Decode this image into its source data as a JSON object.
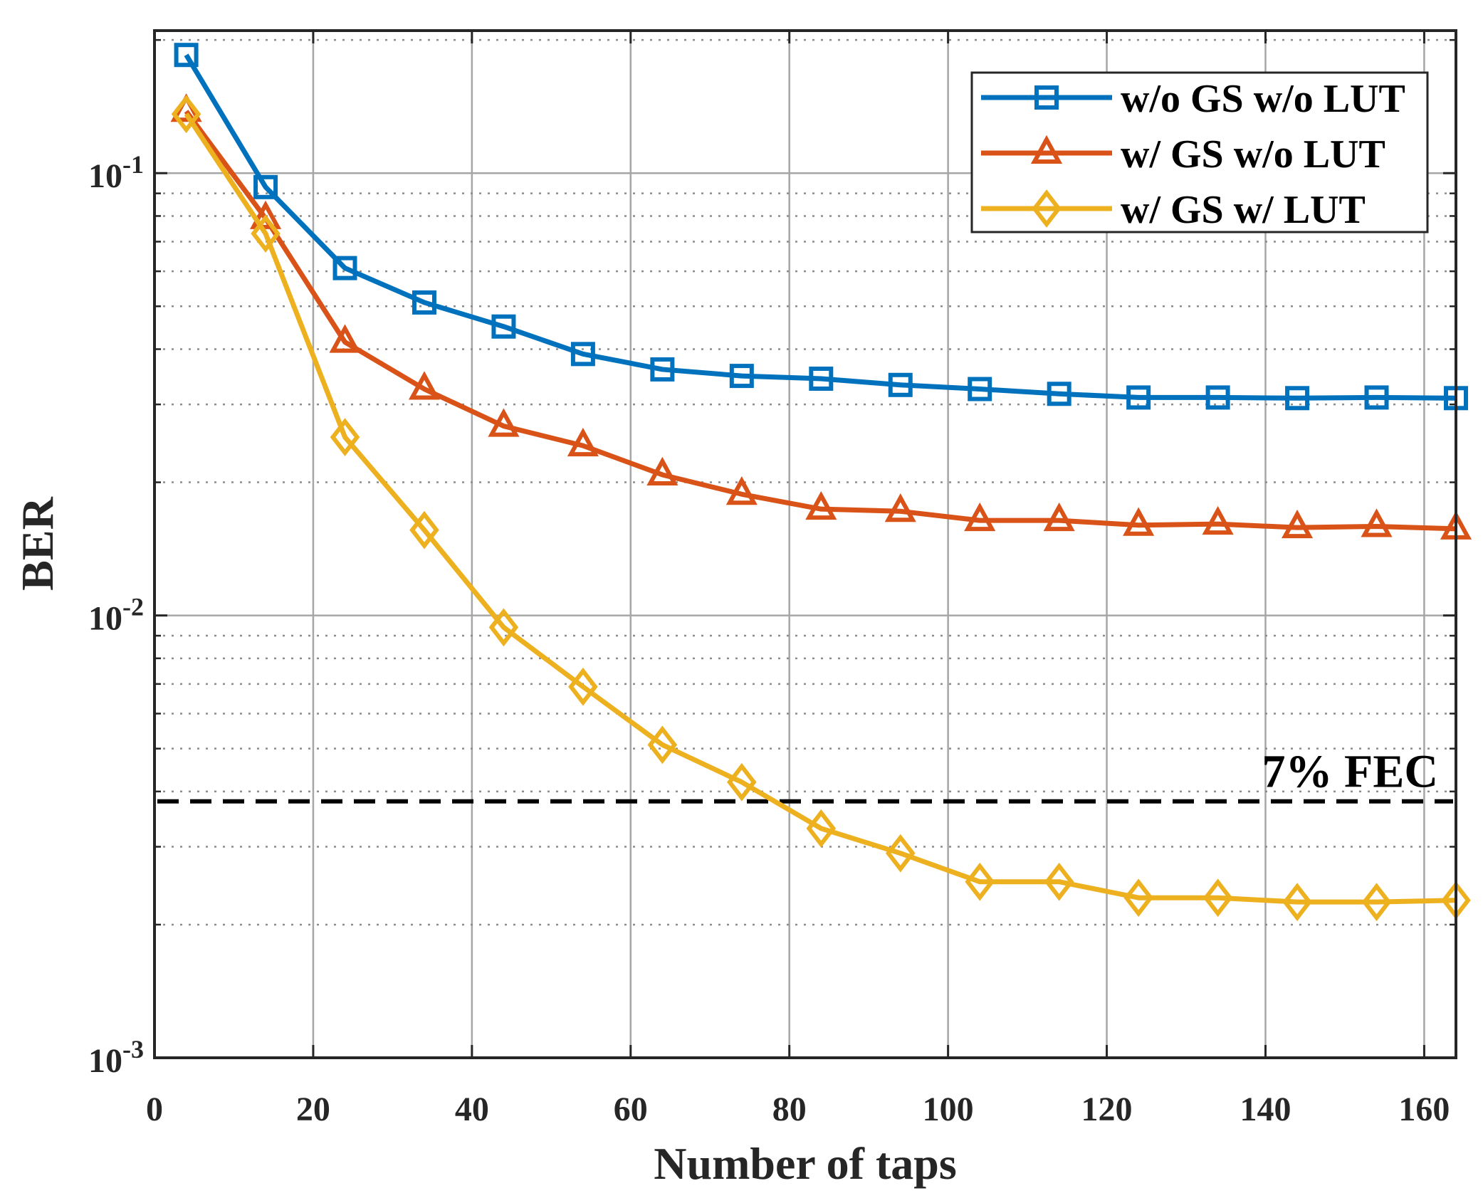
{
  "chart_data": {
    "type": "line",
    "title": "",
    "xlabel": "Number of taps",
    "ylabel": "BER",
    "xscale": "linear",
    "yscale": "log",
    "xlim": [
      0,
      164
    ],
    "ylim": [
      0.001,
      0.21
    ],
    "grid": true,
    "minor_grid": "y",
    "legend_position": "top-right",
    "x_ticks": [
      0,
      20,
      40,
      60,
      80,
      100,
      120,
      140,
      160
    ],
    "x_tick_labels": [
      "0",
      "20",
      "40",
      "60",
      "80",
      "100",
      "120",
      "140",
      "160"
    ],
    "y_ticks": [
      {
        "value": 0.1,
        "base": "10",
        "exp": "-1"
      },
      {
        "value": 0.01,
        "base": "10",
        "exp": "-2"
      },
      {
        "value": 0.001,
        "base": "10",
        "exp": "-3"
      }
    ],
    "x": [
      4,
      14,
      24,
      34,
      44,
      54,
      64,
      74,
      84,
      94,
      104,
      114,
      124,
      134,
      144,
      154,
      164
    ],
    "series": [
      {
        "name": "w/o GS w/o LUT",
        "color": "#0072BD",
        "marker": "square",
        "values": [
          0.185,
          0.093,
          0.061,
          0.051,
          0.045,
          0.039,
          0.036,
          0.0348,
          0.0343,
          0.0332,
          0.0325,
          0.0317,
          0.0311,
          0.0311,
          0.031,
          0.0311,
          0.031
        ]
      },
      {
        "name": "w/ GS w/o LUT",
        "color": "#D95319",
        "marker": "triangle",
        "values": [
          0.138,
          0.079,
          0.0415,
          0.0325,
          0.0268,
          0.0242,
          0.0208,
          0.0188,
          0.0174,
          0.0172,
          0.0164,
          0.0164,
          0.016,
          0.0161,
          0.0158,
          0.0159,
          0.0157
        ]
      },
      {
        "name": "w/ GS w/ LUT",
        "color": "#EDB120",
        "marker": "diamond",
        "values": [
          0.136,
          0.073,
          0.0253,
          0.0156,
          0.0094,
          0.0069,
          0.0051,
          0.0042,
          0.0033,
          0.0029,
          0.0025,
          0.0025,
          0.0023,
          0.0023,
          0.00225,
          0.00225,
          0.00227
        ]
      }
    ],
    "reference_lines": [
      {
        "label": "7% FEC",
        "y": 0.0038,
        "style": "dashed",
        "color": "#000000"
      }
    ]
  }
}
